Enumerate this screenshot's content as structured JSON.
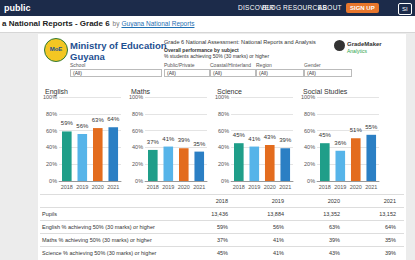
{
  "browser_bar": {
    "brand": "public",
    "nav": [
      "DISCOVER",
      "BLOG",
      "RESOURCES",
      "ABOUT"
    ],
    "signup": "SIGN UP",
    "signin": "SI"
  },
  "viz_header": {
    "title": "a National Reports - Grade 6",
    "by": "by",
    "author": "Guyana National Reports"
  },
  "dashboard": {
    "logo_text": "MoE",
    "org": [
      "Ministry of Education",
      "Guyana"
    ],
    "title": "Grade 6 National Assessment: National Reports and Analysis",
    "subtitle": "Overall performance by subject",
    "note": "% students achieving 50% (30 marks) or higher",
    "partner": [
      "GradeMaker",
      "Analytics"
    ],
    "filters": [
      {
        "label": "School",
        "value": "(All)"
      },
      {
        "label": "Public/Private",
        "value": "(All)"
      },
      {
        "label": "Coastal/Hinterland",
        "value": "(All)"
      },
      {
        "label": "Region",
        "value": "(All)"
      },
      {
        "label": "Gender",
        "value": "(All)"
      }
    ]
  },
  "chart_data": [
    {
      "type": "bar",
      "title": "English",
      "categories": [
        "2018",
        "2019",
        "2020",
        "2021"
      ],
      "values": [
        59,
        56,
        63,
        64
      ],
      "value_labels": [
        "59%",
        "56%",
        "63%",
        "64%"
      ],
      "colors": [
        "#1f9e89",
        "#56b4e9",
        "#e36c1e",
        "#2b7fc4"
      ],
      "ylim": [
        0,
        100
      ],
      "yticks": [
        {
          "value": 0,
          "label": "0%"
        },
        {
          "value": 20,
          "label": "20%"
        },
        {
          "value": 40,
          "label": "40%"
        },
        {
          "value": 60,
          "label": "60%"
        },
        {
          "value": 80,
          "label": "80%"
        },
        {
          "value": 100,
          "label": "100%"
        }
      ],
      "grid": true,
      "data_labels": true
    },
    {
      "type": "bar",
      "title": "Maths",
      "categories": [
        "2018",
        "2019",
        "2020",
        "2021"
      ],
      "values": [
        37,
        41,
        39,
        35
      ],
      "value_labels": [
        "37%",
        "41%",
        "39%",
        "35%"
      ],
      "colors": [
        "#1f9e89",
        "#56b4e9",
        "#e36c1e",
        "#2b7fc4"
      ],
      "ylim": [
        0,
        100
      ],
      "yticks": [
        {
          "value": 0,
          "label": "0%"
        },
        {
          "value": 20,
          "label": "20%"
        },
        {
          "value": 40,
          "label": "40%"
        },
        {
          "value": 60,
          "label": "60%"
        },
        {
          "value": 80,
          "label": "80%"
        },
        {
          "value": 100,
          "label": "100%"
        }
      ],
      "grid": true,
      "data_labels": true
    },
    {
      "type": "bar",
      "title": "Science",
      "categories": [
        "2018",
        "2019",
        "2020",
        "2021"
      ],
      "values": [
        45,
        41,
        43,
        39
      ],
      "value_labels": [
        "45%",
        "41%",
        "43%",
        "39%"
      ],
      "colors": [
        "#1f9e89",
        "#56b4e9",
        "#e36c1e",
        "#2b7fc4"
      ],
      "ylim": [
        0,
        100
      ],
      "yticks": [
        {
          "value": 0,
          "label": "0%"
        },
        {
          "value": 20,
          "label": "20%"
        },
        {
          "value": 40,
          "label": "40%"
        },
        {
          "value": 60,
          "label": "60%"
        },
        {
          "value": 80,
          "label": "80%"
        },
        {
          "value": 100,
          "label": "100%"
        }
      ],
      "grid": true,
      "data_labels": true
    },
    {
      "type": "bar",
      "title": "Social Studies",
      "categories": [
        "2018",
        "2019",
        "2020",
        "2021"
      ],
      "values": [
        45,
        36,
        51,
        55
      ],
      "value_labels": [
        "45%",
        "36%",
        "51%",
        "55%"
      ],
      "colors": [
        "#1f9e89",
        "#56b4e9",
        "#e36c1e",
        "#2b7fc4"
      ],
      "ylim": [
        0,
        100
      ],
      "yticks": [
        {
          "value": 0,
          "label": "0%"
        },
        {
          "value": 20,
          "label": "20%"
        },
        {
          "value": 40,
          "label": "40%"
        },
        {
          "value": 60,
          "label": "60%"
        },
        {
          "value": 80,
          "label": "80%"
        },
        {
          "value": 100,
          "label": "100%"
        }
      ],
      "grid": true,
      "data_labels": true
    }
  ],
  "table": {
    "columns": [
      "2018",
      "2019",
      "2020",
      "2021"
    ],
    "rows": [
      {
        "label": "Pupils",
        "cells": [
          "13,436",
          "13,884",
          "13,352",
          "13,152"
        ]
      },
      {
        "label": "English % achieving 50% (30 marks) or higher",
        "cells": [
          "59%",
          "56%",
          "63%",
          "64%"
        ]
      },
      {
        "label": "Maths % achieving 50% (30 marks) or higher",
        "cells": [
          "37%",
          "41%",
          "39%",
          "35%"
        ]
      },
      {
        "label": "Science % achieving 50% (30 marks) or higher",
        "cells": [
          "45%",
          "41%",
          "43%",
          "39%"
        ]
      }
    ]
  }
}
